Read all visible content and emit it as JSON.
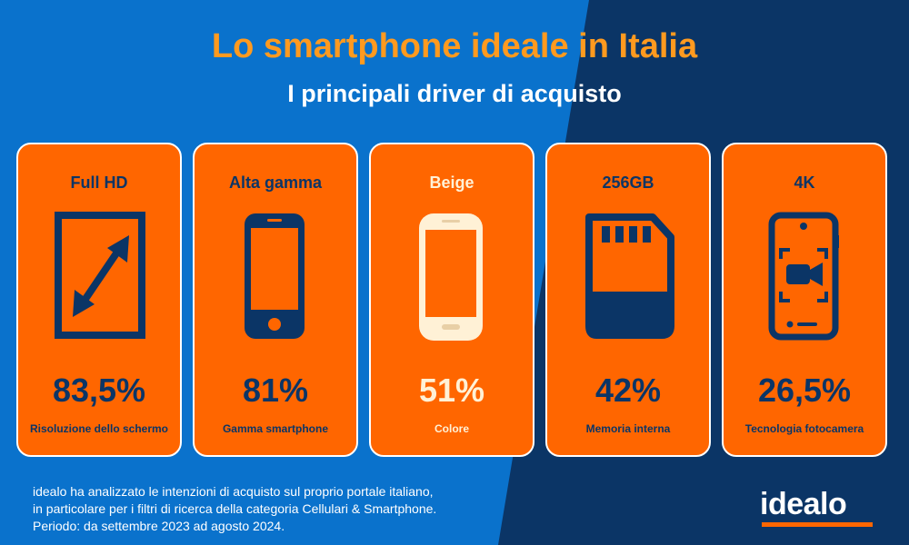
{
  "header": {
    "title": "Lo smartphone ideale in Italia",
    "subtitle": "I principali driver di acquisto"
  },
  "cards": [
    {
      "title": "Full HD",
      "value": "83,5%",
      "caption": "Risoluzione dello schermo",
      "icon": "screen-resize-icon"
    },
    {
      "title": "Alta gamma",
      "value": "81%",
      "caption": "Gamma smartphone",
      "icon": "smartphone-icon"
    },
    {
      "title": "Beige",
      "value": "51%",
      "caption": "Colore",
      "icon": "beige-smartphone-icon"
    },
    {
      "title": "256GB",
      "value": "42%",
      "caption": "Memoria interna",
      "icon": "memory-card-icon"
    },
    {
      "title": "4K",
      "value": "26,5%",
      "caption": "Tecnologia fotocamera",
      "icon": "camera-phone-icon"
    }
  ],
  "footnote": {
    "line1": "idealo ha analizzato le intenzioni di acquisto sul proprio portale italiano,",
    "line2": "in particolare per i filtri di ricerca della categoria Cellulari & Smartphone.",
    "line3": "Periodo: da settembre 2023 ad agosto 2024."
  },
  "brand": {
    "logo_text": "idealo"
  },
  "colors": {
    "background_dark": "#0b3566",
    "background_light": "#0a72cc",
    "card": "#ff6600",
    "title_accent": "#ff9a1f",
    "beige": "#fff1d6"
  }
}
